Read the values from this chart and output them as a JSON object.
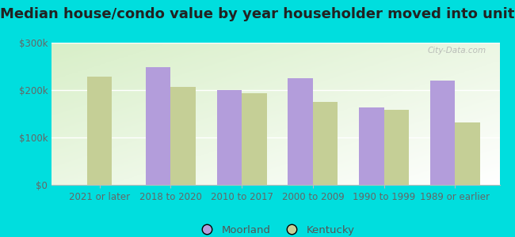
{
  "title": "Median house/condo value by year householder moved into unit",
  "categories": [
    "2021 or later",
    "2018 to 2020",
    "2010 to 2017",
    "2000 to 2009",
    "1990 to 1999",
    "1989 or earlier"
  ],
  "moorland_values": [
    0,
    248000,
    200000,
    225000,
    163000,
    220000
  ],
  "kentucky_values": [
    228000,
    207000,
    193000,
    175000,
    158000,
    132000
  ],
  "moorland_color": "#b39ddb",
  "kentucky_color": "#c5cf96",
  "outer_background": "#00dede",
  "ylim": [
    0,
    300000
  ],
  "yticks": [
    0,
    100000,
    200000,
    300000
  ],
  "ytick_labels": [
    "$0",
    "$100k",
    "$200k",
    "$300k"
  ],
  "legend_labels": [
    "Moorland",
    "Kentucky"
  ],
  "title_fontsize": 13,
  "tick_fontsize": 8.5,
  "legend_fontsize": 9.5,
  "bar_width": 0.35,
  "watermark": "City-Data.com"
}
